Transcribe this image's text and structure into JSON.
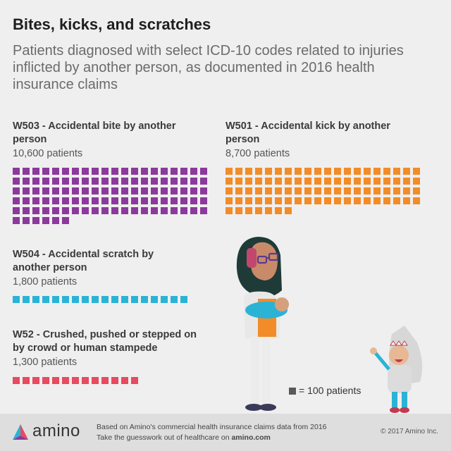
{
  "title": "Bites, kicks, and scratches",
  "subtitle": "Patients diagnosed with select ICD-10 codes related to injuries inflicted by another person, as documented in 2016 health insurance claims",
  "chart_data": {
    "type": "waffle",
    "unit": 100,
    "unit_label": "= 100 patients",
    "series": [
      {
        "code_label": "W503 - Accidental bite by another person",
        "count_label": "10,600 patients",
        "value": 10600,
        "squares": 106,
        "color": "#8b3a9c"
      },
      {
        "code_label": "W501 - Accidental kick by another person",
        "count_label": "8,700 patients",
        "value": 8700,
        "squares": 87,
        "color": "#f28c28"
      },
      {
        "code_label": "W504 - Accidental scratch by another person",
        "count_label": "1,800 patients",
        "value": 1800,
        "squares": 18,
        "color": "#2bb3d6"
      },
      {
        "code_label": "W52 - Crushed, pushed or stepped on by crowd or human stampede",
        "count_label": "1,300 patients",
        "value": 1300,
        "squares": 13,
        "color": "#e84a5f"
      }
    ]
  },
  "footer": {
    "brand": "amino",
    "line1": "Based on Amino's commercial health insurance claims data from 2016",
    "line2_prefix": "Take the guesswork out of healthcare on ",
    "line2_link": "amino.com",
    "copyright": "© 2017 Amino Inc."
  },
  "colors": {
    "background": "#efefef",
    "footer": "#dedede",
    "legend_square": "#5a5a5a"
  }
}
